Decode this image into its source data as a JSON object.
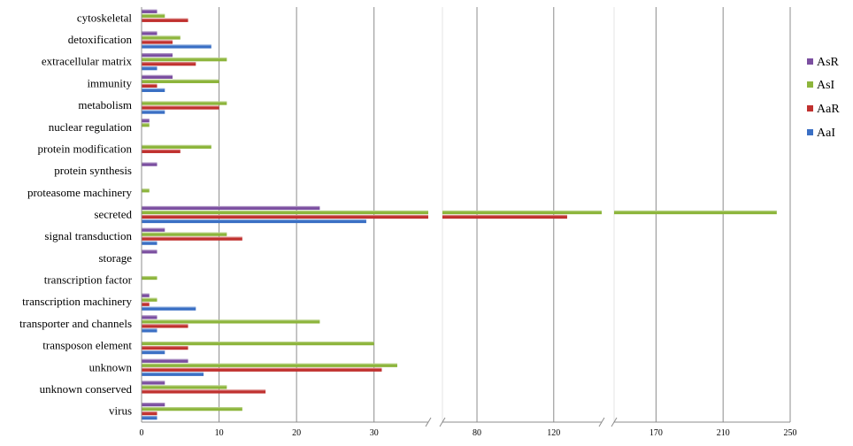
{
  "chart_data": {
    "type": "bar",
    "orientation": "horizontal",
    "categories": [
      "cytoskeletal",
      "detoxification",
      "extracellular matrix",
      "immunity",
      "metabolism",
      "nuclear regulation",
      "protein modification",
      "protein synthesis",
      "proteasome machinery",
      "secreted",
      "signal transduction",
      "storage",
      "transcription factor",
      "transcription machinery",
      "transporter and channels",
      "transposon element",
      "unknown",
      "unknown conserved",
      "virus"
    ],
    "series": [
      {
        "name": "AsR",
        "color": "#7B4FA0",
        "values": [
          2,
          2,
          4,
          4,
          0,
          1,
          0,
          2,
          0,
          23,
          3,
          2,
          0,
          1,
          2,
          0,
          6,
          3,
          3
        ]
      },
      {
        "name": "AsI",
        "color": "#8DB53C",
        "values": [
          3,
          5,
          11,
          10,
          11,
          1,
          9,
          0,
          1,
          242,
          11,
          0,
          2,
          2,
          23,
          30,
          33,
          11,
          13
        ]
      },
      {
        "name": "AaR",
        "color": "#C0312F",
        "values": [
          6,
          4,
          7,
          2,
          10,
          0,
          5,
          0,
          0,
          127,
          13,
          0,
          0,
          1,
          6,
          6,
          31,
          16,
          2
        ]
      },
      {
        "name": "AaI",
        "color": "#3A6FC4",
        "values": [
          0,
          9,
          2,
          3,
          3,
          0,
          0,
          0,
          0,
          29,
          2,
          0,
          0,
          7,
          2,
          3,
          8,
          0,
          2
        ]
      }
    ],
    "x_axis": {
      "broken": true,
      "segments": [
        {
          "range": [
            0,
            37
          ],
          "ticks": [
            "0",
            "10",
            "20",
            "30"
          ]
        },
        {
          "range": [
            62,
            145
          ],
          "ticks": [
            "80",
            "120"
          ]
        },
        {
          "range": [
            145,
            250
          ],
          "ticks": [
            "170",
            "210",
            "250"
          ]
        }
      ]
    },
    "legend": {
      "position": "right",
      "order": [
        "AsR",
        "AsI",
        "AaR",
        "AaI"
      ]
    },
    "grid": {
      "vertical": true,
      "horizontal": false
    }
  }
}
